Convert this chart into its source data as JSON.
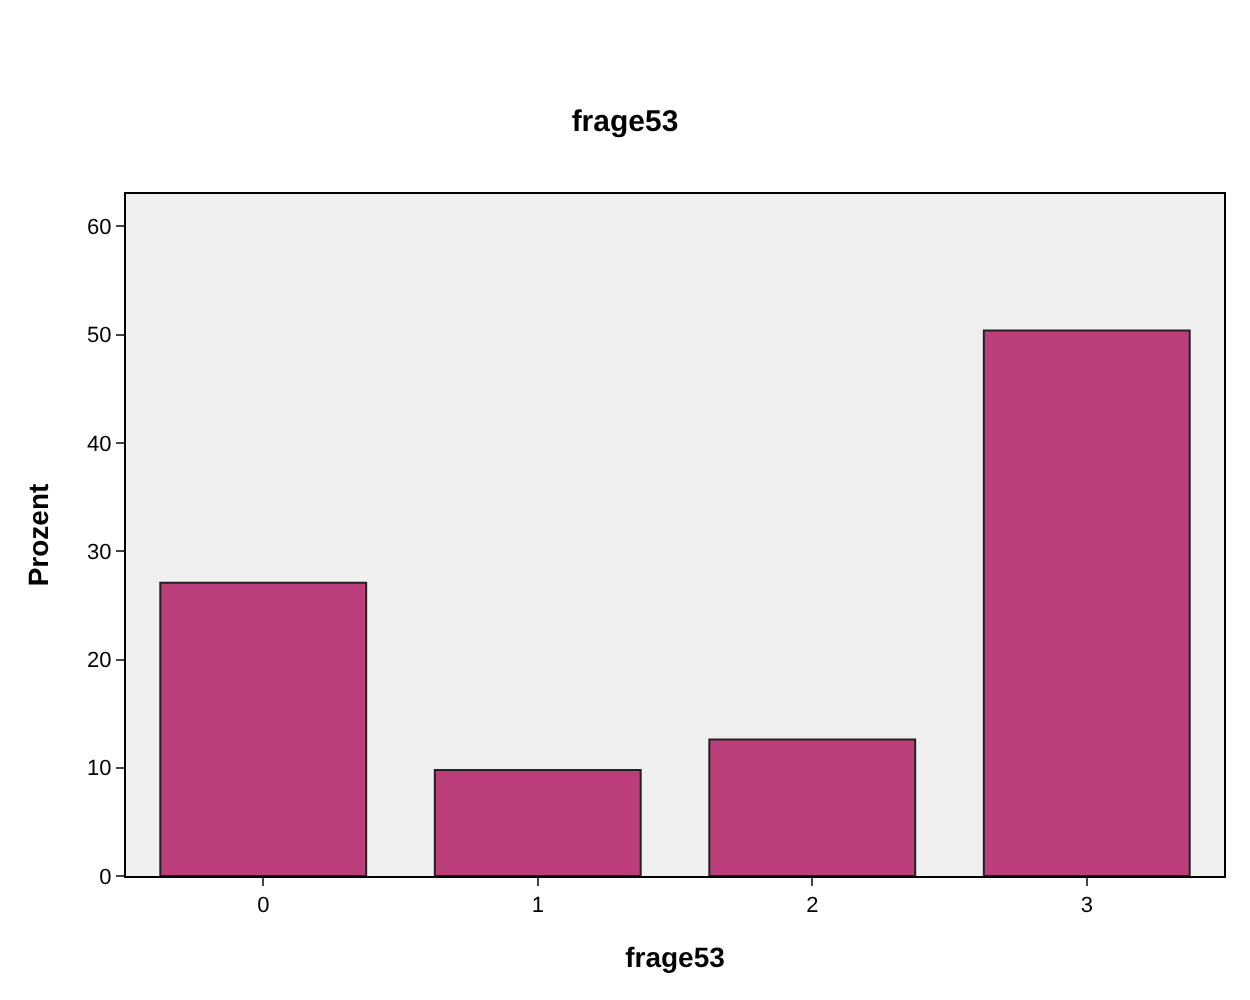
{
  "chart_data": {
    "type": "bar",
    "title": "frage53",
    "xlabel": "frage53",
    "ylabel": "Prozent",
    "categories": [
      "0",
      "1",
      "2",
      "3"
    ],
    "values": [
      27.1,
      9.8,
      12.6,
      50.4
    ],
    "color": "#bc3f7c",
    "ylim": [
      0,
      63
    ],
    "yticks": [
      0,
      10,
      20,
      30,
      40,
      50,
      60
    ],
    "grid": false
  }
}
